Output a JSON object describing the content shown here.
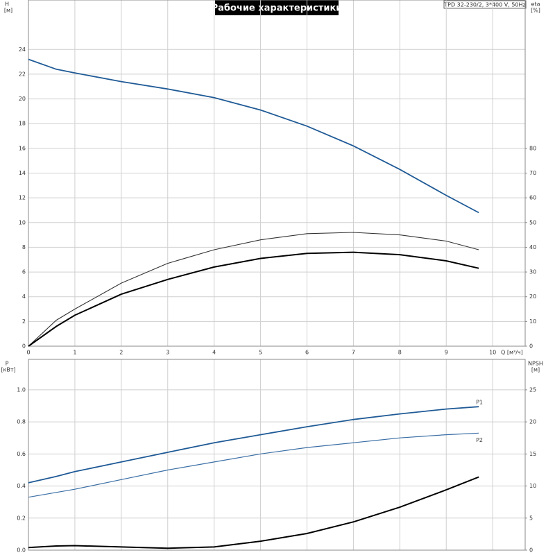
{
  "chart_data": [
    {
      "type": "line",
      "title": "Рабочие характеристики",
      "annotation": "TPD 32-230/2, 3*400 V, 50Hz",
      "ylabel": "H",
      "yunit": "[м]",
      "y2label": "eta",
      "y2unit": "[%]",
      "xlabel": "Q [м³/ч]",
      "x": [
        0,
        0.6,
        1,
        2,
        3,
        4,
        5,
        6,
        7,
        8,
        9,
        9.7
      ],
      "xlim": [
        0,
        10.7
      ],
      "xticks": [
        0,
        1,
        2,
        3,
        4,
        5,
        6,
        7,
        8,
        9,
        10
      ],
      "ylim": [
        0,
        28
      ],
      "yticks": [
        0,
        2,
        4,
        6,
        8,
        10,
        12,
        14,
        16,
        18,
        20,
        22,
        24
      ],
      "y2lim": [
        0,
        140
      ],
      "y2ticks": [
        0,
        10,
        20,
        30,
        40,
        50,
        60,
        70,
        80
      ],
      "grid": true,
      "series": [
        {
          "color": "#1f5a96",
          "values": [
            23.2,
            22.4,
            22.1,
            21.4,
            20.8,
            20.1,
            19.1,
            17.8,
            16.2,
            14.3,
            12.2,
            10.8
          ]
        },
        {
          "color": "#333333",
          "axis": "y2",
          "values": [
            0,
            10.5,
            15,
            25.5,
            33.5,
            39,
            43,
            45.5,
            46,
            45,
            42.5,
            39
          ]
        },
        {
          "color": "#000000",
          "axis": "y2",
          "values": [
            0,
            8,
            12.5,
            21,
            27,
            32,
            35.5,
            37.5,
            38,
            37,
            34.5,
            31.5
          ]
        }
      ]
    },
    {
      "type": "line",
      "ylabel": "P",
      "yunit": "[кВт]",
      "y2label": "NPSH",
      "y2unit": "[м]",
      "x": [
        0,
        0.6,
        1,
        2,
        3,
        4,
        5,
        6,
        7,
        8,
        9,
        9.7
      ],
      "xlim": [
        0,
        10.7
      ],
      "ylim": [
        0,
        1.19
      ],
      "yticks": [
        {
          "value": 0,
          "label": "0.0"
        },
        0.2,
        0.4,
        0.6,
        0.8,
        {
          "value": 1,
          "label": "1.0"
        }
      ],
      "y2lim": [
        0,
        29.75
      ],
      "y2ticks": [
        0,
        5,
        10,
        15,
        20,
        25
      ],
      "grid": true,
      "series": [
        {
          "name": "P1",
          "color": "#1f5a96",
          "values": [
            0.42,
            0.46,
            0.49,
            0.55,
            0.61,
            0.67,
            0.72,
            0.77,
            0.815,
            0.85,
            0.88,
            0.895
          ]
        },
        {
          "name": "P2",
          "color": "#3a6ea5",
          "values": [
            0.33,
            0.36,
            0.38,
            0.44,
            0.5,
            0.55,
            0.6,
            0.64,
            0.67,
            0.7,
            0.72,
            0.73
          ]
        },
        {
          "color": "#000000",
          "axis": "y2",
          "values": [
            0.4,
            0.65,
            0.7,
            0.5,
            0.3,
            0.5,
            1.4,
            2.6,
            4.4,
            6.7,
            9.4,
            11.4
          ]
        }
      ]
    }
  ]
}
